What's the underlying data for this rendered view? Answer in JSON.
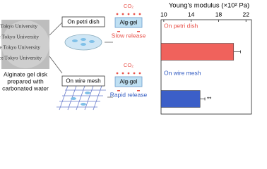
{
  "diagram": {
    "photo_text": [
      "ce Tokyo University",
      "ce Tokyo University",
      "ce Tokyo University",
      "ce Tokyo University"
    ],
    "caption": [
      "Alginate gel disk",
      "prepared with",
      "carbonated water"
    ],
    "conditions": [
      {
        "label": "On petri dish",
        "gas": "CO₂",
        "gel": "Alg-gel",
        "release": "Slow release",
        "color": "#e8524a"
      },
      {
        "label": "On wire mesh",
        "gas": "CO₂",
        "gel": "Alg-gel",
        "release": "Rapid release",
        "color": "#2f59c0"
      }
    ]
  },
  "chart_data": {
    "type": "barh",
    "title": "Young’s modulus (×10² Pa)",
    "categories": [
      "On petri dish",
      "On wire mesh"
    ],
    "values": [
      20.2,
      15.3
    ],
    "errors": [
      1.0,
      0.7
    ],
    "colors": [
      "#f0625c",
      "#3c5fc8"
    ],
    "label_colors": [
      "#e8524a",
      "#2f59c0"
    ],
    "annotations": [
      null,
      "**"
    ],
    "xlim": [
      9.6,
      22.8
    ],
    "xticks": [
      10,
      14,
      18,
      22
    ]
  }
}
